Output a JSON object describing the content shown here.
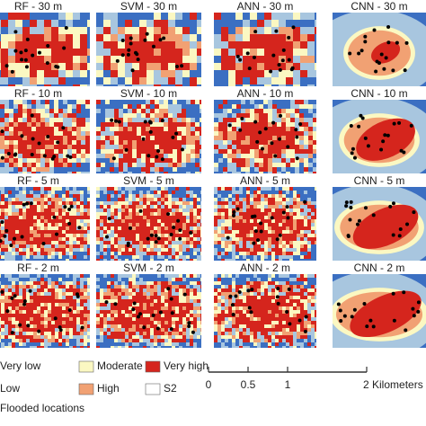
{
  "panels": [
    {
      "label": "RF - 30 m"
    },
    {
      "label": "SVM - 30 m"
    },
    {
      "label": "ANN - 30 m"
    },
    {
      "label": "CNN - 30 m"
    },
    {
      "label": "RF - 10 m"
    },
    {
      "label": "SVM - 10 m"
    },
    {
      "label": "ANN - 10 m"
    },
    {
      "label": "CNN - 10 m"
    },
    {
      "label": "RF - 5 m"
    },
    {
      "label": "SVM - 5 m"
    },
    {
      "label": "ANN - 5 m"
    },
    {
      "label": "CNN - 5 m"
    },
    {
      "label": "RF - 2 m"
    },
    {
      "label": "SVM - 2 m"
    },
    {
      "label": "ANN - 2 m"
    },
    {
      "label": "CNN - 2 m"
    }
  ],
  "legend": {
    "items": [
      {
        "label": "Very low",
        "color": "#3b6fc2"
      },
      {
        "label": "Low",
        "color": "#a8c6df"
      },
      {
        "label": "Flooded locations",
        "color": "#000000"
      },
      {
        "label": "Moderate",
        "color": "#fbf8c2"
      },
      {
        "label": "High",
        "color": "#f1a173"
      },
      {
        "label": "Very high",
        "color": "#d5251d"
      },
      {
        "label": "S2",
        "color": "#ffffff"
      }
    ]
  },
  "scale_bar": {
    "ticks": [
      "0",
      "0.5",
      "1",
      "2 Kilometers"
    ]
  }
}
